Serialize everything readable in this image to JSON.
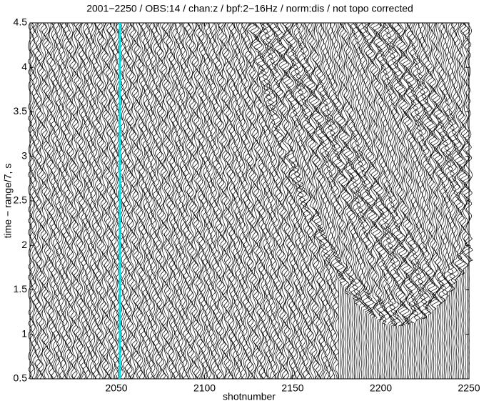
{
  "chart_data": {
    "type": "wiggle",
    "title": "2001−2250 / OBS:14 / chan:z / bpf:2−16Hz / norm:dis / not topo corrected",
    "x_label": "shotnumber",
    "y_label": "time − range/7, s",
    "xlim": [
      2001,
      2250
    ],
    "xticks": [
      2050,
      2100,
      2150,
      2200,
      2250
    ],
    "ylim": [
      0.5,
      4.5
    ],
    "yticks": [
      0.5,
      1,
      1.5,
      2,
      2.5,
      3,
      3.5,
      4,
      4.5
    ],
    "highlight": {
      "x": 2052,
      "color": "#00e0e8"
    }
  }
}
